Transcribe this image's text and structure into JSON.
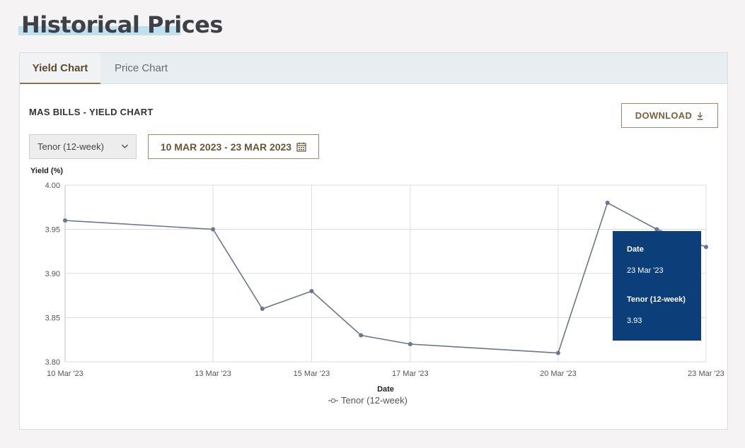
{
  "page": {
    "title": "Historical Prices"
  },
  "tabs": [
    {
      "label": "Yield Chart",
      "active": true
    },
    {
      "label": "Price Chart",
      "active": false
    }
  ],
  "chart_panel": {
    "title": "MAS BILLS - YIELD CHART",
    "download_label": "DOWNLOAD",
    "tenor_select": "Tenor (12-week)",
    "date_range": "10 MAR 2023 - 23 MAR 2023"
  },
  "tooltip": {
    "date_label": "Date",
    "date_value": "23 Mar '23",
    "series_label": "Tenor (12-week)",
    "series_value": "3.93"
  },
  "colors": {
    "series": "#6a7590",
    "tooltip_bg": "#0c3f79",
    "accent": "#8a7550"
  },
  "chart_data": {
    "type": "line",
    "title": "",
    "xlabel": "Date",
    "ylabel": "Yield (%)",
    "ylim": [
      3.8,
      4.0
    ],
    "yticks": [
      "4.00",
      "3.95",
      "3.90",
      "3.85",
      "3.80"
    ],
    "xticks": [
      "10 Mar '23",
      "13 Mar '23",
      "15 Mar '23",
      "17 Mar '23",
      "20 Mar '23",
      "23 Mar '23"
    ],
    "grid": true,
    "legend_position": "bottom",
    "series": [
      {
        "name": "Tenor (12-week)",
        "x": [
          "2023-03-10",
          "2023-03-13",
          "2023-03-14",
          "2023-03-15",
          "2023-03-16",
          "2023-03-17",
          "2023-03-20",
          "2023-03-21",
          "2023-03-22",
          "2023-03-23"
        ],
        "values": [
          3.96,
          3.95,
          3.86,
          3.88,
          3.83,
          3.82,
          3.81,
          3.98,
          3.95,
          3.93
        ]
      }
    ]
  }
}
